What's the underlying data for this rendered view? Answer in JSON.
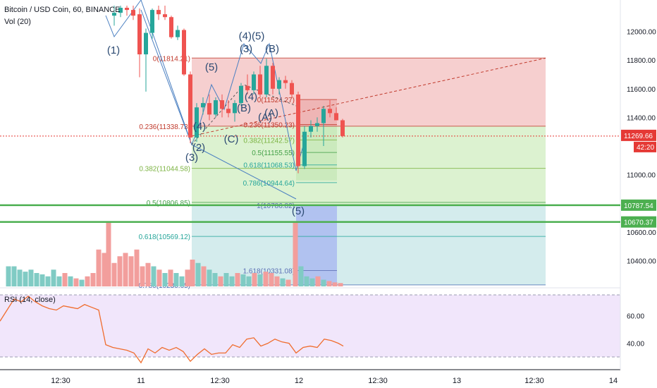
{
  "header": {
    "symbol_line": "Bitcoin / USD Coin, 60, BINANCE",
    "volume_line": "Vol (20)"
  },
  "rsi_panel": {
    "label": "RSI (14, close)"
  },
  "colors": {
    "up": "#26a69a",
    "down": "#ef5350",
    "fib_red_zone": "#f4c7c7",
    "fib_green_zone": "#d6f0c8",
    "fib_teal_zone": "#cce9ea",
    "projection_blue": "#a7b8f0",
    "rsi_line": "#f06d2e",
    "rsi_band": "#f1e6fb",
    "support_line": "#4caf50",
    "price_tag": "#e53935",
    "wave_label": "#2c4a72"
  },
  "chart_data": {
    "type": "candlestick",
    "price_axis": {
      "ticks": [
        "12000.00",
        "11800.00",
        "11600.00",
        "11400.00",
        "11000.00",
        "10600.00",
        "10400.00"
      ],
      "range": [
        10250,
        12180
      ]
    },
    "current_price": "11269.66",
    "countdown": "42:20",
    "horizontal_levels": [
      "10787.54",
      "10670.37"
    ],
    "time_axis": {
      "ticks": [
        "12:30",
        "11",
        "12:30",
        "12",
        "12:30",
        "13",
        "12:30",
        "14"
      ]
    },
    "candles": [
      {
        "t": 162,
        "o": 12110,
        "h": 12180,
        "l": 12040,
        "c": 12130
      },
      {
        "t": 171,
        "o": 12130,
        "h": 12180,
        "l": 12100,
        "c": 12165
      },
      {
        "t": 180,
        "o": 12165,
        "h": 12180,
        "l": 12110,
        "c": 12150
      },
      {
        "t": 189,
        "o": 12150,
        "h": 12180,
        "l": 12080,
        "c": 12110
      },
      {
        "t": 198,
        "o": 12120,
        "h": 12160,
        "l": 11680,
        "c": 11840
      },
      {
        "t": 207,
        "o": 11840,
        "h": 12020,
        "l": 11580,
        "c": 11990
      },
      {
        "t": 216,
        "o": 11990,
        "h": 12160,
        "l": 11950,
        "c": 12150
      },
      {
        "t": 225,
        "o": 12150,
        "h": 12180,
        "l": 12080,
        "c": 12120
      },
      {
        "t": 234,
        "o": 12120,
        "h": 12180,
        "l": 12080,
        "c": 12100
      },
      {
        "t": 243,
        "o": 12100,
        "h": 12110,
        "l": 11950,
        "c": 11960
      },
      {
        "t": 252,
        "o": 11960,
        "h": 12040,
        "l": 11940,
        "c": 12010
      },
      {
        "t": 261,
        "o": 12010,
        "h": 12020,
        "l": 11690,
        "c": 11700
      },
      {
        "t": 270,
        "o": 11700,
        "h": 11720,
        "l": 11220,
        "c": 11260
      },
      {
        "t": 279,
        "o": 11260,
        "h": 11500,
        "l": 11230,
        "c": 11470
      },
      {
        "t": 288,
        "o": 11470,
        "h": 11540,
        "l": 11420,
        "c": 11500
      },
      {
        "t": 297,
        "o": 11500,
        "h": 11560,
        "l": 11380,
        "c": 11420
      },
      {
        "t": 306,
        "o": 11420,
        "h": 11540,
        "l": 11400,
        "c": 11520
      },
      {
        "t": 315,
        "o": 11520,
        "h": 11560,
        "l": 11400,
        "c": 11460
      },
      {
        "t": 324,
        "o": 11460,
        "h": 11520,
        "l": 11400,
        "c": 11430
      },
      {
        "t": 333,
        "o": 11430,
        "h": 11520,
        "l": 11370,
        "c": 11500
      },
      {
        "t": 342,
        "o": 11500,
        "h": 11640,
        "l": 11480,
        "c": 11620
      },
      {
        "t": 351,
        "o": 11620,
        "h": 11700,
        "l": 11560,
        "c": 11590
      },
      {
        "t": 360,
        "o": 11590,
        "h": 11720,
        "l": 11560,
        "c": 11700
      },
      {
        "t": 369,
        "o": 11700,
        "h": 11760,
        "l": 11540,
        "c": 11560
      },
      {
        "t": 378,
        "o": 11560,
        "h": 11810,
        "l": 11540,
        "c": 11760
      },
      {
        "t": 387,
        "o": 11760,
        "h": 11780,
        "l": 11560,
        "c": 11600
      },
      {
        "t": 396,
        "o": 11600,
        "h": 11680,
        "l": 11560,
        "c": 11660
      },
      {
        "t": 405,
        "o": 11660,
        "h": 11690,
        "l": 11600,
        "c": 11640
      },
      {
        "t": 414,
        "o": 11640,
        "h": 11660,
        "l": 11540,
        "c": 11560
      },
      {
        "t": 423,
        "o": 11560,
        "h": 11580,
        "l": 11010,
        "c": 11060
      },
      {
        "t": 432,
        "o": 11060,
        "h": 11340,
        "l": 11040,
        "c": 11300
      },
      {
        "t": 441,
        "o": 11300,
        "h": 11380,
        "l": 11260,
        "c": 11340
      },
      {
        "t": 450,
        "o": 11340,
        "h": 11400,
        "l": 11300,
        "c": 11360
      },
      {
        "t": 459,
        "o": 11360,
        "h": 11480,
        "l": 11200,
        "c": 11460
      },
      {
        "t": 468,
        "o": 11460,
        "h": 11520,
        "l": 11400,
        "c": 11430
      },
      {
        "t": 477,
        "o": 11430,
        "h": 11470,
        "l": 11380,
        "c": 11380
      },
      {
        "t": 486,
        "o": 11380,
        "h": 11390,
        "l": 11260,
        "c": 11270
      }
    ],
    "volume": [
      {
        "t": 12,
        "v": 0.3,
        "up": true
      },
      {
        "t": 20,
        "v": 0.3,
        "up": true
      },
      {
        "t": 28,
        "v": 0.25,
        "up": true
      },
      {
        "t": 36,
        "v": 0.22,
        "up": true
      },
      {
        "t": 44,
        "v": 0.25,
        "up": true
      },
      {
        "t": 52,
        "v": 0.2,
        "up": true
      },
      {
        "t": 60,
        "v": 0.18,
        "up": true
      },
      {
        "t": 68,
        "v": 0.15,
        "up": true
      },
      {
        "t": 76,
        "v": 0.25,
        "up": true
      },
      {
        "t": 84,
        "v": 0.15,
        "up": true
      },
      {
        "t": 92,
        "v": 0.2,
        "up": false
      },
      {
        "t": 100,
        "v": 0.15,
        "up": true
      },
      {
        "t": 108,
        "v": 0.12,
        "up": false
      },
      {
        "t": 116,
        "v": 0.1,
        "up": true
      },
      {
        "t": 124,
        "v": 0.15,
        "up": false
      },
      {
        "t": 132,
        "v": 0.2,
        "up": false
      },
      {
        "t": 140,
        "v": 0.55,
        "up": false
      },
      {
        "t": 148,
        "v": 0.5,
        "up": false
      },
      {
        "t": 154,
        "v": 0.95,
        "up": false
      },
      {
        "t": 162,
        "v": 0.35,
        "up": false
      },
      {
        "t": 170,
        "v": 0.45,
        "up": false
      },
      {
        "t": 178,
        "v": 0.5,
        "up": false
      },
      {
        "t": 186,
        "v": 0.45,
        "up": false
      },
      {
        "t": 194,
        "v": 0.55,
        "up": false
      },
      {
        "t": 202,
        "v": 0.3,
        "up": false
      },
      {
        "t": 210,
        "v": 0.35,
        "up": false
      },
      {
        "t": 218,
        "v": 0.3,
        "up": true
      },
      {
        "t": 226,
        "v": 0.25,
        "up": false
      },
      {
        "t": 234,
        "v": 0.2,
        "up": true
      },
      {
        "t": 242,
        "v": 0.25,
        "up": false
      },
      {
        "t": 250,
        "v": 0.2,
        "up": true
      },
      {
        "t": 258,
        "v": 0.15,
        "up": true
      },
      {
        "t": 266,
        "v": 0.25,
        "up": false
      },
      {
        "t": 273,
        "v": 0.4,
        "up": false
      },
      {
        "t": 281,
        "v": 0.35,
        "up": true
      },
      {
        "t": 289,
        "v": 0.3,
        "up": false
      },
      {
        "t": 297,
        "v": 0.25,
        "up": true
      },
      {
        "t": 305,
        "v": 0.2,
        "up": true
      },
      {
        "t": 313,
        "v": 0.15,
        "up": false
      },
      {
        "t": 321,
        "v": 0.2,
        "up": true
      },
      {
        "t": 329,
        "v": 0.15,
        "up": true
      },
      {
        "t": 337,
        "v": 0.2,
        "up": false
      },
      {
        "t": 345,
        "v": 0.18,
        "up": true
      },
      {
        "t": 353,
        "v": 0.15,
        "up": true
      },
      {
        "t": 361,
        "v": 0.2,
        "up": false
      },
      {
        "t": 369,
        "v": 0.18,
        "up": true
      },
      {
        "t": 377,
        "v": 0.22,
        "up": false
      },
      {
        "t": 385,
        "v": 0.2,
        "up": false
      },
      {
        "t": 393,
        "v": 0.15,
        "up": false
      },
      {
        "t": 401,
        "v": 0.12,
        "up": true
      },
      {
        "t": 409,
        "v": 0.1,
        "up": false
      },
      {
        "t": 419,
        "v": 0.95,
        "up": false
      },
      {
        "t": 427,
        "v": 0.3,
        "up": true
      },
      {
        "t": 435,
        "v": 0.15,
        "up": true
      },
      {
        "t": 443,
        "v": 0.12,
        "up": true
      },
      {
        "t": 451,
        "v": 0.15,
        "up": false
      },
      {
        "t": 459,
        "v": 0.1,
        "up": true
      },
      {
        "t": 467,
        "v": 0.08,
        "up": false
      },
      {
        "t": 475,
        "v": 0.06,
        "up": false
      },
      {
        "t": 483,
        "v": 0.05,
        "up": false
      }
    ],
    "rsi": {
      "axis_ticks": [
        "60.00",
        "40.00"
      ],
      "range": [
        22,
        78
      ],
      "values": [
        [
          0,
          56
        ],
        [
          10,
          64
        ],
        [
          20,
          72
        ],
        [
          30,
          70
        ],
        [
          40,
          74
        ],
        [
          50,
          70
        ],
        [
          60,
          67
        ],
        [
          70,
          65
        ],
        [
          80,
          64
        ],
        [
          90,
          67
        ],
        [
          100,
          66
        ],
        [
          110,
          65
        ],
        [
          120,
          68
        ],
        [
          130,
          66
        ],
        [
          140,
          64
        ],
        [
          150,
          39
        ],
        [
          160,
          37
        ],
        [
          170,
          36
        ],
        [
          180,
          35
        ],
        [
          190,
          33
        ],
        [
          200,
          26
        ],
        [
          210,
          36
        ],
        [
          220,
          33
        ],
        [
          230,
          37
        ],
        [
          240,
          35
        ],
        [
          250,
          37
        ],
        [
          260,
          34
        ],
        [
          270,
          27
        ],
        [
          280,
          32
        ],
        [
          290,
          36
        ],
        [
          300,
          32
        ],
        [
          310,
          33
        ],
        [
          320,
          33
        ],
        [
          330,
          39
        ],
        [
          340,
          37
        ],
        [
          350,
          43
        ],
        [
          360,
          44
        ],
        [
          370,
          38
        ],
        [
          380,
          40
        ],
        [
          390,
          43
        ],
        [
          400,
          41
        ],
        [
          410,
          40
        ],
        [
          420,
          33
        ],
        [
          430,
          37
        ],
        [
          440,
          38
        ],
        [
          450,
          37
        ],
        [
          460,
          43
        ],
        [
          470,
          42
        ],
        [
          480,
          40
        ],
        [
          487,
          38
        ]
      ]
    },
    "fib_labels": [
      "0(11814.21)",
      "0.236(11338.73)",
      "0.382(11044.58)",
      "0.5(10806.85)",
      "0.618(10569.12)",
      "0.786(10230.65)",
      "0.236(11350.23)",
      "0.382(11242.57)",
      "0.5(11155.55)",
      "0.618(11068.53)",
      "0.786(10944.64)",
      "1(10786.82)",
      "1.618(10331.08)",
      "0(11524.27)"
    ],
    "wave_labels": [
      "(1)",
      "(2)",
      "(3)",
      "(4)",
      "(5)",
      "(A)",
      "(B)",
      "(C)",
      "(3)",
      "(4)(5)",
      "(B)",
      "(A)",
      "(4)",
      "(5)"
    ]
  }
}
